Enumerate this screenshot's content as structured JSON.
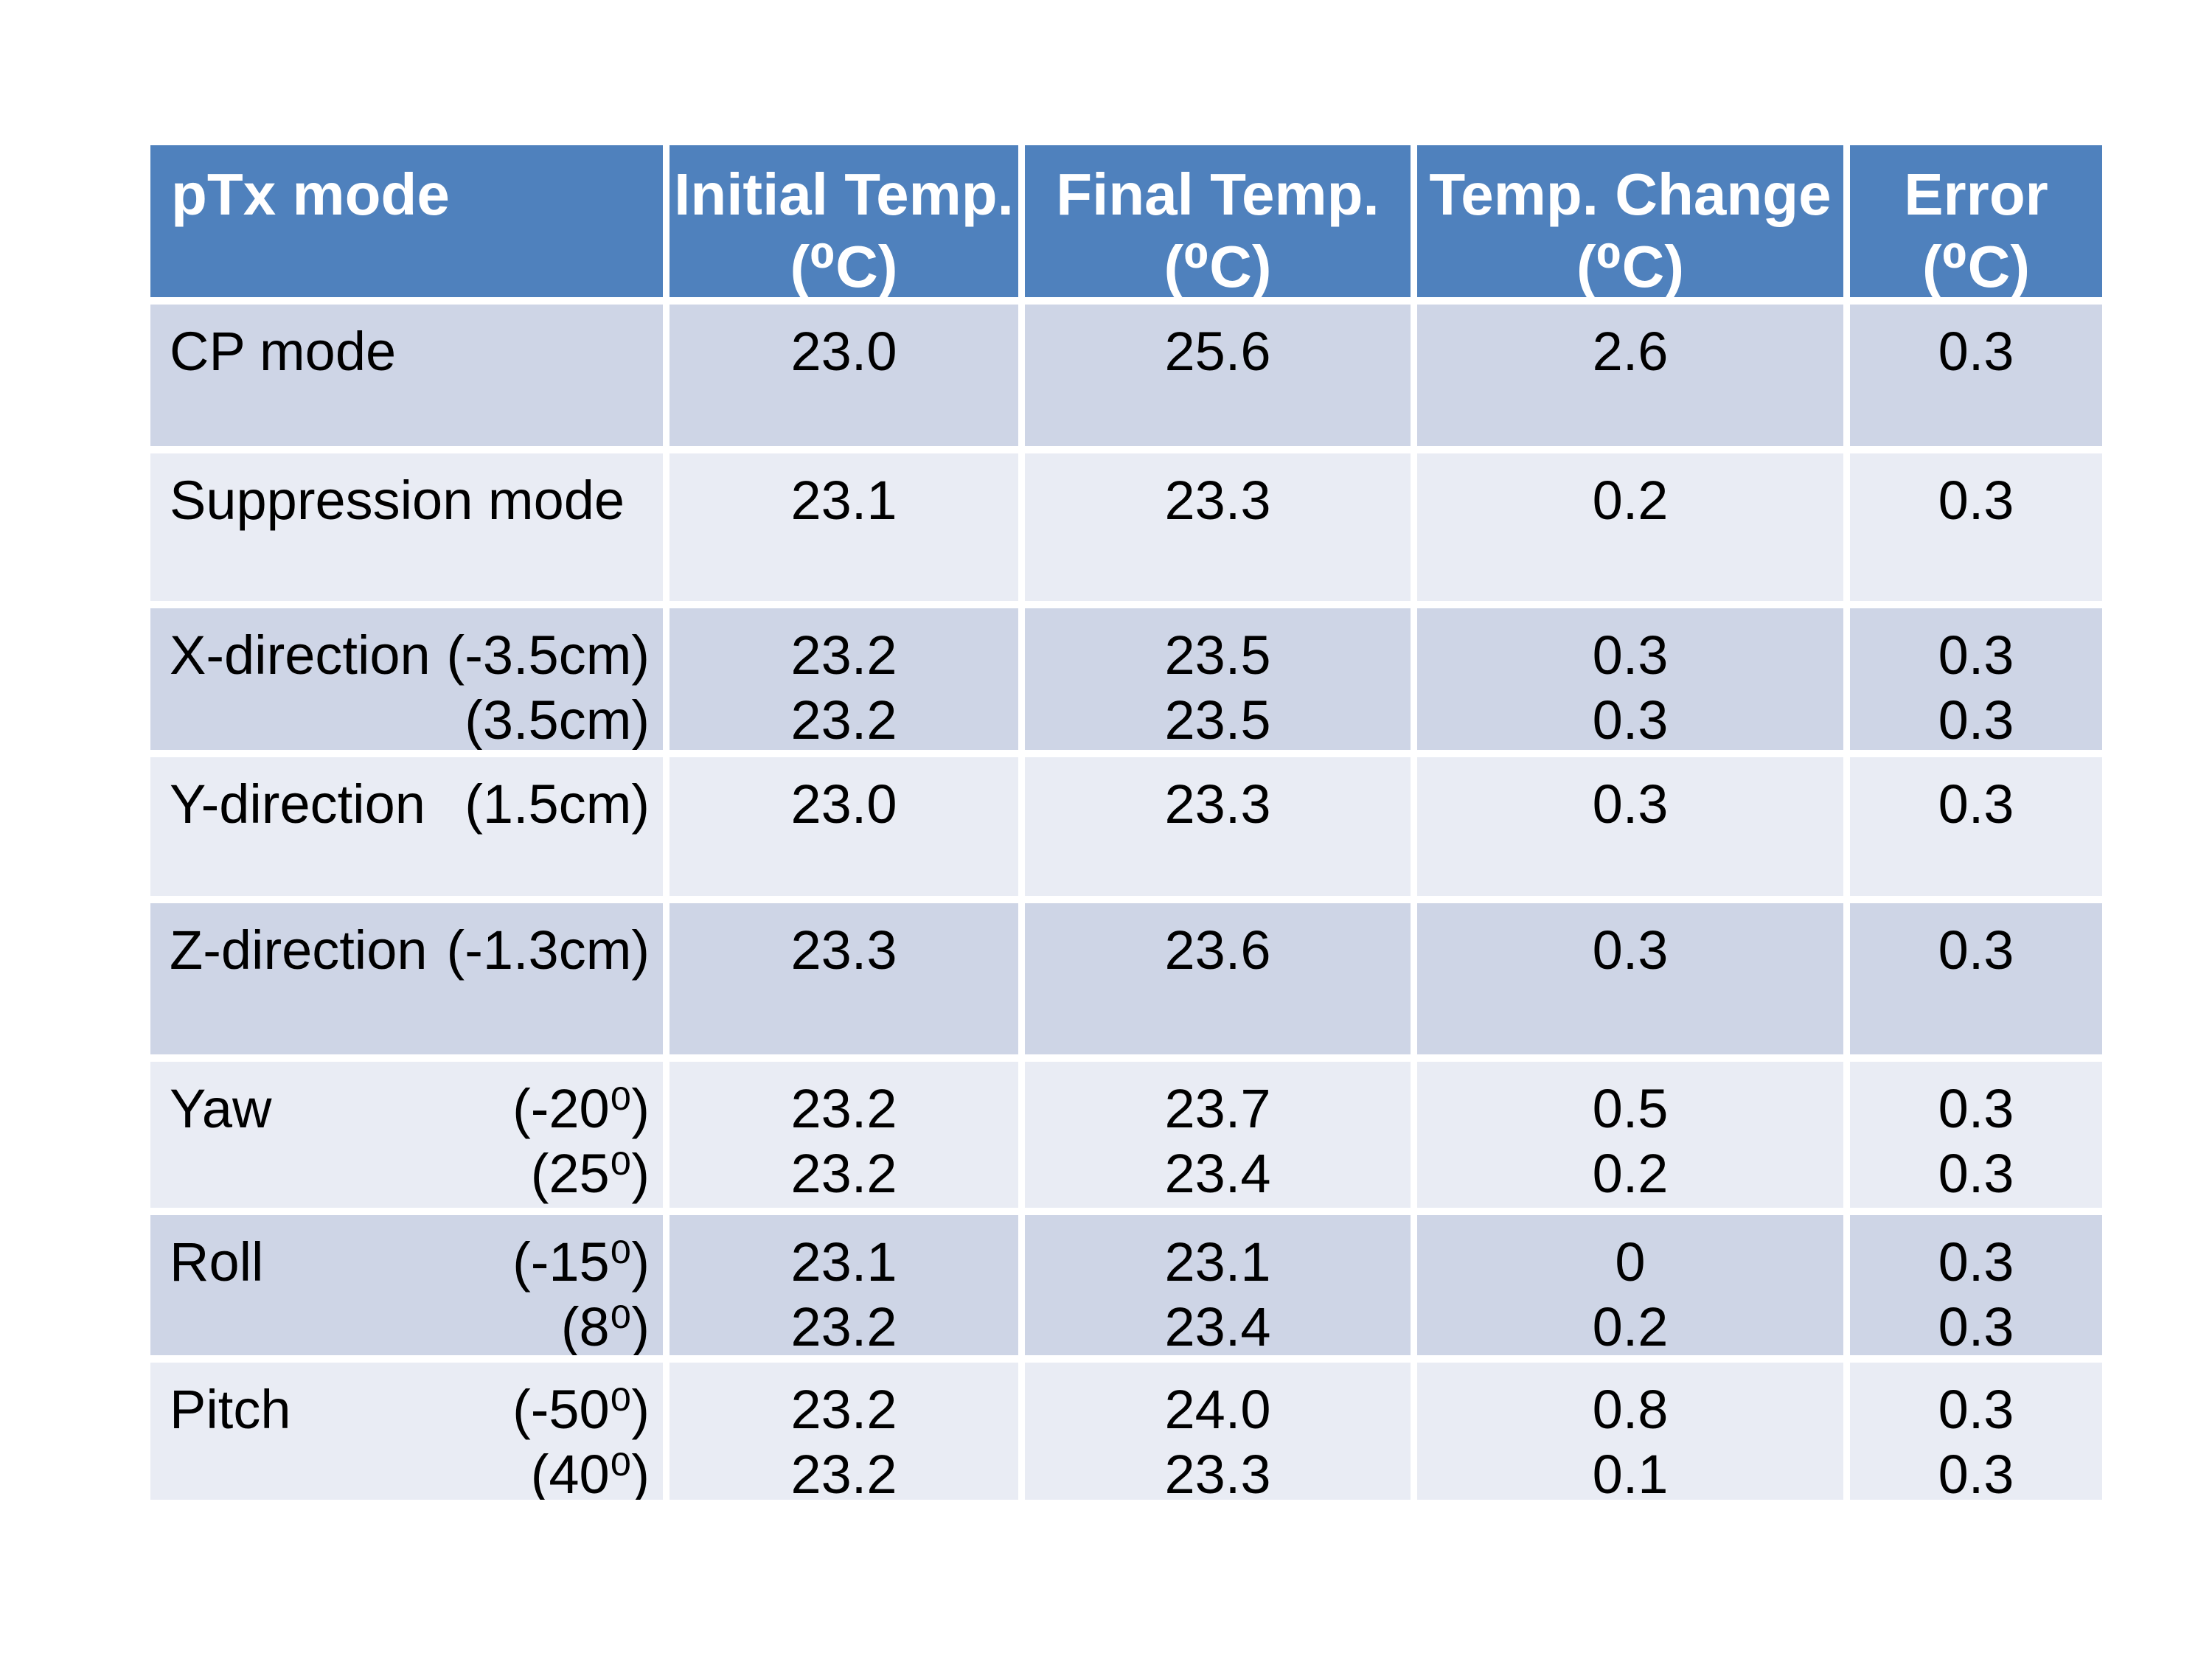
{
  "table": {
    "colors": {
      "header_bg": "#4F81BD",
      "header_text": "#FFFFFF",
      "band_dark": "#CED5E6",
      "band_light": "#E9ECF4",
      "text": "#000000"
    },
    "header": {
      "mode": "pTx mode",
      "measures": [
        {
          "line1": "Initial Temp.",
          "line2": "(⁰C)"
        },
        {
          "line1": "Final Temp.",
          "line2": "(⁰C)"
        },
        {
          "line1": "Temp. Change",
          "line2": "(⁰C)"
        },
        {
          "line1": "Error",
          "line2": "(⁰C)"
        }
      ]
    },
    "rows": [
      {
        "name": "CP mode",
        "params": [],
        "initial": [
          "23.0"
        ],
        "final": [
          "25.6"
        ],
        "change": [
          "2.6"
        ],
        "error": [
          "0.3"
        ]
      },
      {
        "name": "Suppression mode",
        "params": [],
        "initial": [
          "23.1"
        ],
        "final": [
          "23.3"
        ],
        "change": [
          "0.2"
        ],
        "error": [
          "0.3"
        ]
      },
      {
        "name": "X-direction",
        "params": [
          "(-3.5cm)",
          "(3.5cm)"
        ],
        "initial": [
          "23.2",
          "23.2"
        ],
        "final": [
          "23.5",
          "23.5"
        ],
        "change": [
          "0.3",
          "0.3"
        ],
        "error": [
          "0.3",
          "0.3"
        ]
      },
      {
        "name": "Y-direction",
        "params": [
          "(1.5cm)"
        ],
        "initial": [
          "23.0"
        ],
        "final": [
          "23.3"
        ],
        "change": [
          "0.3"
        ],
        "error": [
          "0.3"
        ]
      },
      {
        "name": "Z-direction",
        "params": [
          "(-1.3cm)"
        ],
        "initial": [
          "23.3"
        ],
        "final": [
          "23.6"
        ],
        "change": [
          "0.3"
        ],
        "error": [
          "0.3"
        ]
      },
      {
        "name": "Yaw",
        "params": [
          "(-20⁰)",
          "(25⁰)"
        ],
        "initial": [
          "23.2",
          "23.2"
        ],
        "final": [
          "23.7",
          "23.4"
        ],
        "change": [
          "0.5",
          "0.2"
        ],
        "error": [
          "0.3",
          "0.3"
        ]
      },
      {
        "name": "Roll",
        "params": [
          "(-15⁰)",
          "(8⁰)"
        ],
        "initial": [
          "23.1",
          "23.2"
        ],
        "final": [
          "23.1",
          "23.4"
        ],
        "change": [
          "0",
          "0.2"
        ],
        "error": [
          "0.3",
          "0.3"
        ]
      },
      {
        "name": "Pitch",
        "params": [
          "(-50⁰)",
          "(40⁰)"
        ],
        "initial": [
          "23.2",
          "23.2"
        ],
        "final": [
          "24.0",
          "23.3"
        ],
        "change": [
          "0.8",
          "0.1"
        ],
        "error": [
          "0.3",
          "0.3"
        ]
      }
    ]
  }
}
